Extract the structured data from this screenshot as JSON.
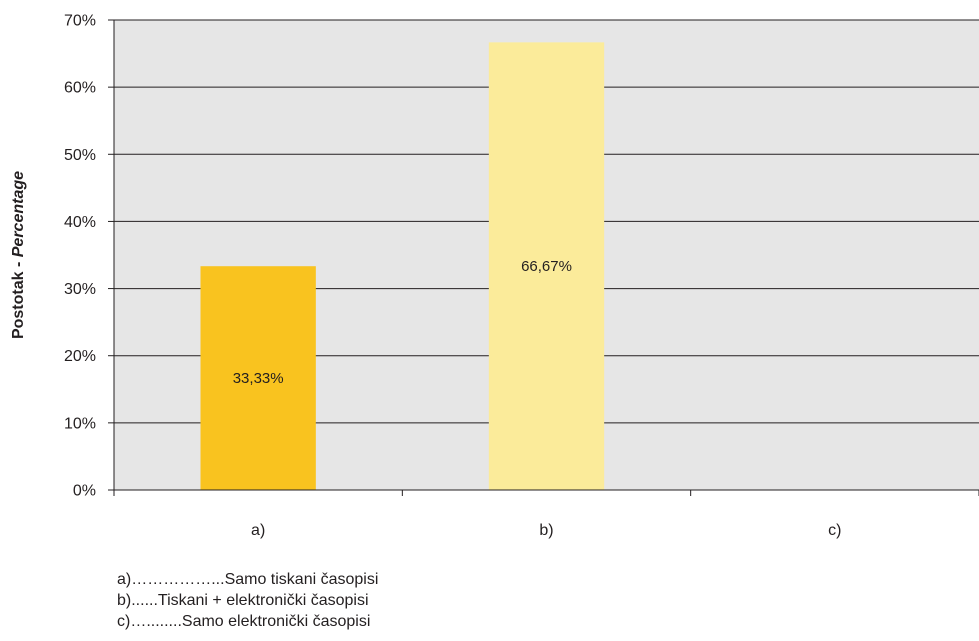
{
  "chart_data": {
    "type": "bar",
    "categories": [
      "a)",
      "b)",
      "c)"
    ],
    "values": [
      33.33,
      66.67,
      0
    ],
    "data_labels": [
      "33,33%",
      "66,67%",
      ""
    ],
    "bar_colors": [
      "#f9c31f",
      "#fbeb9a",
      "#fbeb9a"
    ],
    "ylabel_main": "Postotak - ",
    "ylabel_italic": "Percentage",
    "ylim": [
      0,
      70
    ],
    "yticks": [
      0,
      10,
      20,
      30,
      40,
      50,
      60,
      70
    ],
    "ytick_labels": [
      "0%",
      "10%",
      "20%",
      "30%",
      "40%",
      "50%",
      "60%",
      "70%"
    ],
    "grid": true,
    "plot_background": "#e6e6e6",
    "grid_color": "#231f20"
  },
  "legend": [
    "a)……………...Samo tiskani časopisi",
    "b)......Tiskani + elektronički časopisi",
    "c)…........Samo elektronički časopisi"
  ]
}
